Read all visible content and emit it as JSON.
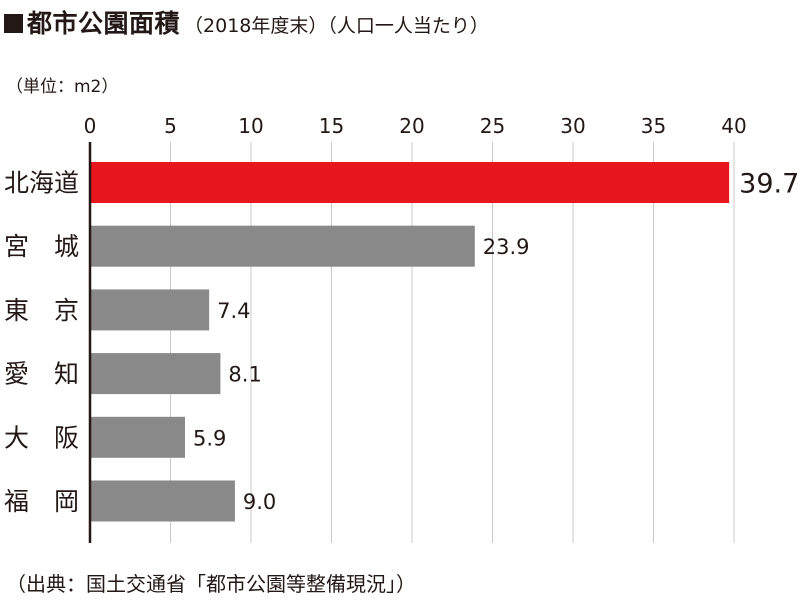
{
  "chart_data": {
    "type": "bar",
    "orientation": "horizontal",
    "title": "都市公園面積",
    "subtitle": "（2018年度末）（人口一人当たり）",
    "unit_label": "（単位：m2）",
    "source": "（出典：国土交通省「都市公園等整備現況」）",
    "categories": [
      "北海道",
      "宮　城",
      "東　京",
      "愛　知",
      "大　阪",
      "福　岡"
    ],
    "values": [
      39.7,
      23.9,
      7.4,
      8.1,
      5.9,
      9.0
    ],
    "value_labels": [
      "39.7",
      "23.9",
      "7.4",
      "8.1",
      "5.9",
      "9.0"
    ],
    "x_ticks": [
      "0",
      "5",
      "10",
      "15",
      "20",
      "25",
      "30",
      "35",
      "40"
    ],
    "xlim": [
      0,
      40
    ],
    "axis_position": "top",
    "grid": true,
    "highlight_index": 0,
    "colors": {
      "highlight": "#e8161d",
      "bar": "#898989",
      "grid": "#c9c9c9",
      "axis": "#231815"
    }
  }
}
